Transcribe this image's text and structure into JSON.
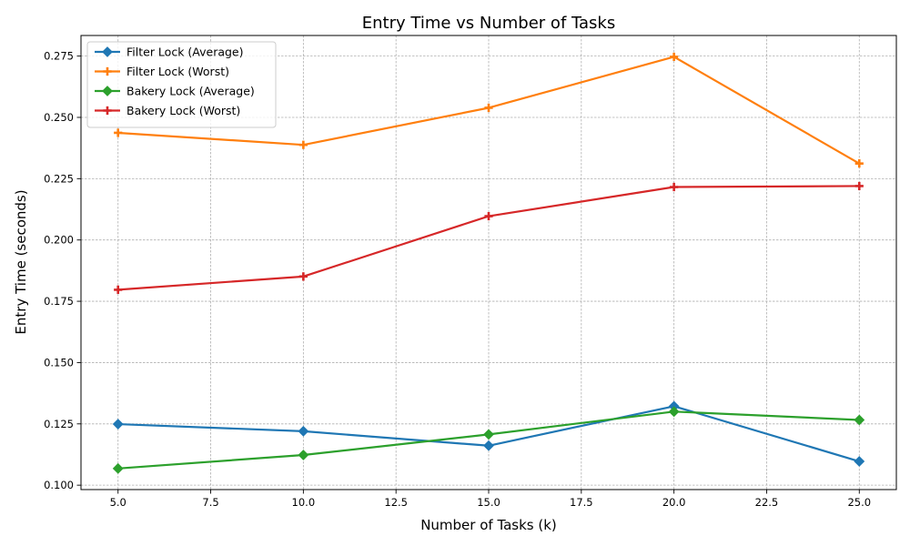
{
  "chart_data": {
    "type": "line",
    "title": "Entry Time vs Number of Tasks",
    "xlabel": "Number of Tasks (k)",
    "ylabel": "Entry Time (seconds)",
    "x": [
      5,
      10,
      15,
      20,
      25
    ],
    "xlim": [
      4.0,
      26.0
    ],
    "ylim": [
      0.0982,
      0.2834
    ],
    "xticks": [
      5.0,
      7.5,
      10.0,
      12.5,
      15.0,
      17.5,
      20.0,
      22.5,
      25.0
    ],
    "xtick_labels": [
      "5.0",
      "7.5",
      "10.0",
      "12.5",
      "15.0",
      "17.5",
      "20.0",
      "22.5",
      "25.0"
    ],
    "yticks": [
      0.1,
      0.125,
      0.15,
      0.175,
      0.2,
      0.225,
      0.25,
      0.275
    ],
    "ytick_labels": [
      "0.100",
      "0.125",
      "0.150",
      "0.175",
      "0.200",
      "0.225",
      "0.250",
      "0.275"
    ],
    "grid": true,
    "legend_position": "top-left",
    "series": [
      {
        "name": "Filter Lock (Average)",
        "color": "#1f77b4",
        "marker": "diamond",
        "values": [
          0.1249,
          0.122,
          0.1161,
          0.1322,
          0.1097
        ]
      },
      {
        "name": "Filter Lock (Worst)",
        "color": "#ff7f0e",
        "marker": "plus",
        "values": [
          0.2437,
          0.2388,
          0.2539,
          0.2747,
          0.2312
        ]
      },
      {
        "name": "Bakery Lock (Average)",
        "color": "#2ca02c",
        "marker": "diamond",
        "values": [
          0.1068,
          0.1123,
          0.1207,
          0.13,
          0.1266
        ]
      },
      {
        "name": "Bakery Lock (Worst)",
        "color": "#d62728",
        "marker": "plus",
        "values": [
          0.1797,
          0.1851,
          0.2097,
          0.2216,
          0.222
        ]
      }
    ]
  }
}
